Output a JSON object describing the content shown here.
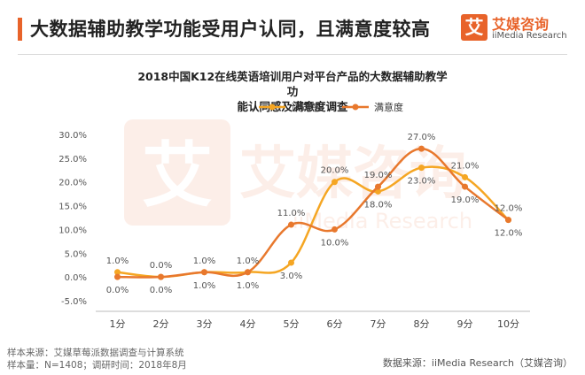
{
  "header": {
    "title": "大数据辅助教学功能受用户认同，且满意度较高"
  },
  "logo": {
    "mark": "艾",
    "cn": "艾媒咨询",
    "en": "iiMedia Research"
  },
  "watermark": {
    "cn": "艾媒咨询",
    "en": "iiMedia Research"
  },
  "colors": {
    "accent": "#e8632a",
    "series_1": "#f5a623",
    "series_2": "#e8782d"
  },
  "chart_data": {
    "type": "line",
    "title_line1": "2018中国K12在线英语培训用户对平台产品的大数据辅助教学功",
    "title_line2": "能认同感及满意度调查",
    "categories": [
      "1分",
      "2分",
      "3分",
      "4分",
      "5分",
      "6分",
      "7分",
      "8分",
      "9分",
      "10分"
    ],
    "series": [
      {
        "name": "认同感",
        "values": [
          1.0,
          0.0,
          1.0,
          1.0,
          3.0,
          20.0,
          18.0,
          23.0,
          21.0,
          12.0
        ],
        "labels": [
          "1.0%",
          "0.0%",
          "1.0%",
          "1.0%",
          "3.0%",
          "20.0%",
          "18.0%",
          "23.0%",
          "21.0%",
          "12.0%"
        ]
      },
      {
        "name": "满意度",
        "values": [
          0.0,
          0.0,
          1.0,
          1.0,
          11.0,
          10.0,
          19.0,
          27.0,
          19.0,
          12.0
        ],
        "labels": [
          "0.0%",
          "0.0%",
          "1.0%",
          "1.0%",
          "11.0%",
          "10.0%",
          "19.0%",
          "27.0%",
          "19.0%",
          "12.0%"
        ]
      }
    ],
    "yticks": [
      "30.0%",
      "25.0%",
      "20.0%",
      "15.0%",
      "10.0%",
      "5.0%",
      "0.0%",
      "-5.0%"
    ],
    "ylim": [
      -5,
      30
    ],
    "grid": false,
    "legend_position": "top-center",
    "smooth": true
  },
  "footer": {
    "source": "样本来源：艾媒草莓派数据调查与计算系统",
    "sample": "样本量：N=1408；调研时间：2018年8月",
    "data_source": "数据来源：iiMedia Research（艾媒咨询）"
  }
}
